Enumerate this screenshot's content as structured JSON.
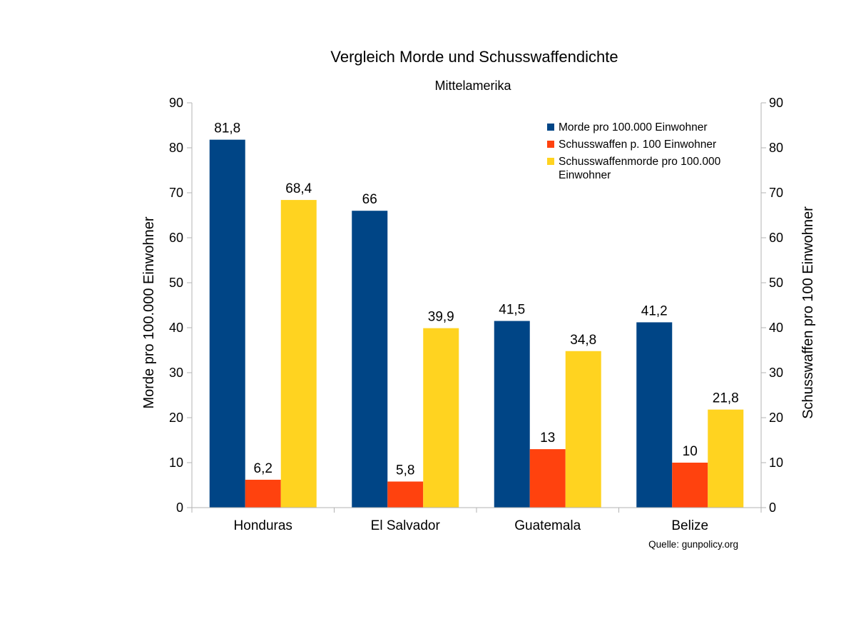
{
  "chart_data": {
    "type": "bar",
    "title": "Vergleich Morde und Schusswaffendichte",
    "subtitle": "Mittelamerika",
    "ylabel": "Morde pro 100.000 Einwohner",
    "y2label": "Schusswaffen pro 100 Einwohner",
    "ylim": [
      0,
      90
    ],
    "y2lim": [
      0,
      90
    ],
    "yticks": [
      "0",
      "10",
      "20",
      "30",
      "40",
      "50",
      "60",
      "70",
      "80",
      "90"
    ],
    "categories": [
      "Honduras",
      "El Salvador",
      "Guatemala",
      "Belize"
    ],
    "series": [
      {
        "name": "Morde pro 100.000 Einwohner",
        "color": "#004586",
        "values": [
          81.8,
          66,
          41.5,
          41.2
        ],
        "labels": [
          "81,8",
          "66",
          "41,5",
          "41,2"
        ]
      },
      {
        "name": "Schusswaffen p. 100 Einwohner",
        "color": "#ff420e",
        "values": [
          6.2,
          5.8,
          13,
          10
        ],
        "labels": [
          "6,2",
          "5,8",
          "13",
          "10"
        ]
      },
      {
        "name": "Schusswaffenmorde pro 100.000 Einwohner",
        "legend_lines": [
          "Schusswaffenmorde pro 100.000",
          "Einwohner"
        ],
        "color": "#ffd320",
        "values": [
          68.4,
          39.9,
          34.8,
          21.8
        ],
        "labels": [
          "68,4",
          "39,9",
          "34,8",
          "21,8"
        ]
      }
    ],
    "grid": false,
    "legend_position": "top-right",
    "source": "Quelle: gunpolicy.org"
  }
}
